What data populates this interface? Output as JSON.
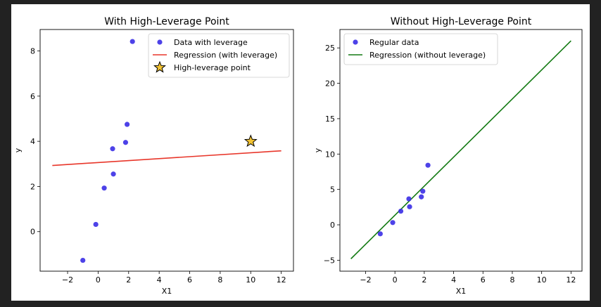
{
  "chart_data": [
    {
      "type": "scatter",
      "title": "With High-Leverage Point",
      "xlabel": "X1",
      "ylabel": "y",
      "xlim": [
        -3.8,
        12.8
      ],
      "ylim": [
        -1.75,
        8.95
      ],
      "xticks": [
        "−2",
        "0",
        "2",
        "4",
        "6",
        "8",
        "10",
        "12"
      ],
      "xtick_values": [
        -2,
        0,
        2,
        4,
        6,
        8,
        10,
        12
      ],
      "yticks": [
        "0",
        "2",
        "4",
        "6",
        "8"
      ],
      "ytick_values": [
        0,
        2,
        4,
        6,
        8
      ],
      "legend_position": "top-right",
      "series": [
        {
          "name": "Data with leverage",
          "kind": "points",
          "color": "#3a2ee6",
          "points": [
            [
              -1.0,
              -1.27
            ],
            [
              -0.15,
              0.32
            ],
            [
              0.4,
              1.93
            ],
            [
              1.0,
              2.55
            ],
            [
              0.95,
              3.67
            ],
            [
              1.8,
              3.95
            ],
            [
              1.9,
              4.75
            ],
            [
              2.25,
              8.42
            ]
          ]
        },
        {
          "name": "Regression (with leverage)",
          "kind": "line",
          "color": "#e8362a",
          "points": [
            [
              -3.0,
              2.93
            ],
            [
              12.0,
              3.58
            ]
          ]
        },
        {
          "name": "High-leverage point",
          "kind": "star",
          "color": "#f2c232",
          "edge_color": "#000000",
          "points": [
            [
              10.0,
              4.0
            ]
          ]
        }
      ]
    },
    {
      "type": "scatter",
      "title": "Without High-Leverage Point",
      "xlabel": "X1",
      "ylabel": "y",
      "xlim": [
        -3.75,
        12.75
      ],
      "ylim": [
        -6.55,
        27.6
      ],
      "xticks": [
        "−2",
        "0",
        "2",
        "4",
        "6",
        "8",
        "10",
        "12"
      ],
      "xtick_values": [
        -2,
        0,
        2,
        4,
        6,
        8,
        10,
        12
      ],
      "yticks": [
        "−5",
        "0",
        "5",
        "10",
        "15",
        "20",
        "25"
      ],
      "ytick_values": [
        -5,
        0,
        5,
        10,
        15,
        20,
        25
      ],
      "legend_position": "top-left",
      "series": [
        {
          "name": "Regular data",
          "kind": "points",
          "color": "#3a2ee6",
          "points": [
            [
              -1.0,
              -1.27
            ],
            [
              -0.15,
              0.32
            ],
            [
              0.4,
              1.93
            ],
            [
              1.0,
              2.55
            ],
            [
              0.95,
              3.67
            ],
            [
              1.8,
              3.95
            ],
            [
              1.9,
              4.75
            ],
            [
              2.25,
              8.42
            ]
          ]
        },
        {
          "name": "Regression (without leverage)",
          "kind": "line",
          "color": "#137a13",
          "points": [
            [
              -3.0,
              -4.8
            ],
            [
              12.0,
              26.0
            ]
          ]
        }
      ]
    }
  ]
}
